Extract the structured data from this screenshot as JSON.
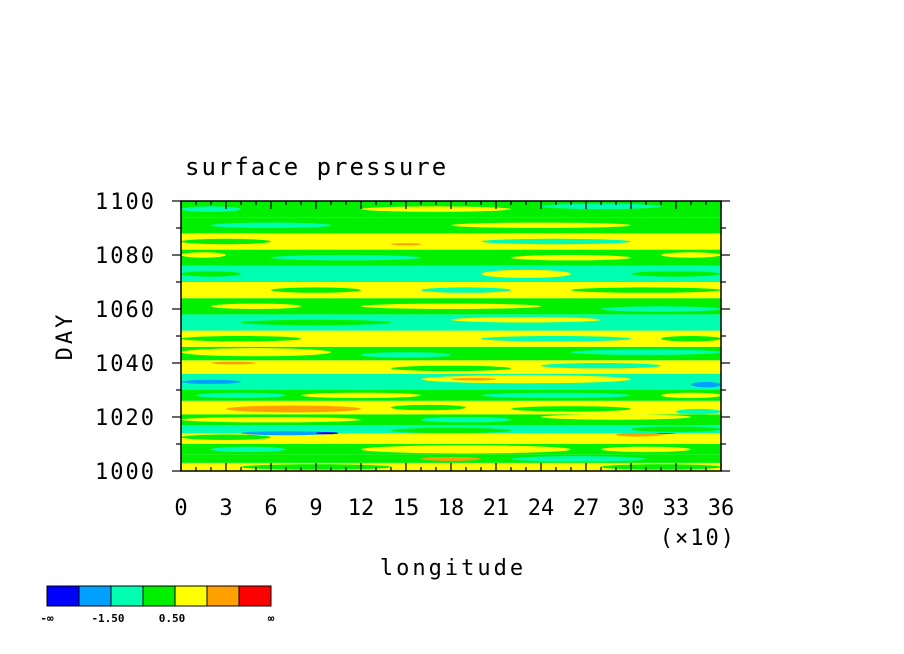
{
  "chart_data": {
    "type": "heatmap",
    "title": "surface pressure",
    "xlabel": "longitude",
    "ylabel": "DAY",
    "x_multiplier_label": "(×10)",
    "xlim": [
      0,
      36
    ],
    "ylim": [
      1000,
      1100
    ],
    "x_ticks": [
      0,
      3,
      6,
      9,
      12,
      15,
      18,
      21,
      24,
      27,
      30,
      33,
      36
    ],
    "y_ticks": [
      1000,
      1020,
      1040,
      1060,
      1080,
      1100
    ],
    "colorbar": {
      "colors": [
        "#0000ff",
        "#00a0ff",
        "#00ffb0",
        "#00f000",
        "#ffff00",
        "#ffa000",
        "#ff0000"
      ],
      "labels": [
        "-∞",
        "-1.50",
        "0.50",
        "∞"
      ]
    },
    "bands": [
      {
        "y0": 1000,
        "y1": 1003,
        "level": 4,
        "patches": [
          {
            "x": 4,
            "y": 1001.5,
            "w": 10,
            "h": 2,
            "level": 3
          },
          {
            "x": 28,
            "y": 1001.5,
            "w": 8,
            "h": 2,
            "level": 3
          }
        ]
      },
      {
        "y0": 1003,
        "y1": 1006,
        "level": 3,
        "patches": [
          {
            "x": 16,
            "y": 1004.5,
            "w": 4,
            "h": 1.5,
            "level": 5
          },
          {
            "x": 22,
            "y": 1004.5,
            "w": 9,
            "h": 2,
            "level": 2
          }
        ]
      },
      {
        "y0": 1006,
        "y1": 1010,
        "level": 3,
        "patches": [
          {
            "x": 2,
            "y": 1008,
            "w": 5,
            "h": 2,
            "level": 2
          },
          {
            "x": 12,
            "y": 1008,
            "w": 14,
            "h": 3,
            "level": 4
          },
          {
            "x": 28,
            "y": 1008,
            "w": 6,
            "h": 2,
            "level": 4
          }
        ]
      },
      {
        "y0": 1010,
        "y1": 1014,
        "level": 4,
        "patches": [
          {
            "x": 0,
            "y": 1012.5,
            "w": 6,
            "h": 2,
            "level": 3
          },
          {
            "x": 22,
            "y": 1012,
            "w": 8,
            "h": 2.5,
            "level": 4
          },
          {
            "x": 30,
            "y": 1014,
            "w": 3,
            "h": 0.8,
            "level": 6
          },
          {
            "x": 29,
            "y": 1013.5,
            "w": 3,
            "h": 1.5,
            "level": 5
          }
        ]
      },
      {
        "y0": 1014,
        "y1": 1017,
        "level": 2,
        "patches": [
          {
            "x": 4,
            "y": 1014,
            "w": 6,
            "h": 1.5,
            "level": 1
          },
          {
            "x": 9,
            "y": 1014,
            "w": 1.5,
            "h": 0.8,
            "level": 0
          },
          {
            "x": 14,
            "y": 1015,
            "w": 8,
            "h": 2,
            "level": 3
          },
          {
            "x": 30,
            "y": 1015.5,
            "w": 6,
            "h": 2,
            "level": 3
          }
        ]
      },
      {
        "y0": 1017,
        "y1": 1021,
        "level": 3,
        "patches": [
          {
            "x": 0,
            "y": 1019,
            "w": 12,
            "h": 2,
            "level": 4
          },
          {
            "x": 16,
            "y": 1019,
            "w": 6,
            "h": 2,
            "level": 2
          },
          {
            "x": 24,
            "y": 1020,
            "w": 10,
            "h": 2,
            "level": 4
          }
        ]
      },
      {
        "y0": 1021,
        "y1": 1026,
        "level": 4,
        "patches": [
          {
            "x": 3,
            "y": 1023,
            "w": 9,
            "h": 2.5,
            "level": 5
          },
          {
            "x": 14,
            "y": 1023.5,
            "w": 5,
            "h": 2,
            "level": 3
          },
          {
            "x": 22,
            "y": 1023,
            "w": 8,
            "h": 2,
            "level": 3
          },
          {
            "x": 33,
            "y": 1022,
            "w": 3,
            "h": 2,
            "level": 2
          }
        ]
      },
      {
        "y0": 1026,
        "y1": 1030,
        "level": 3,
        "patches": [
          {
            "x": 1,
            "y": 1028,
            "w": 6,
            "h": 2,
            "level": 2
          },
          {
            "x": 8,
            "y": 1028,
            "w": 8,
            "h": 2,
            "level": 4
          },
          {
            "x": 20,
            "y": 1028,
            "w": 10,
            "h": 2,
            "level": 2
          },
          {
            "x": 32,
            "y": 1028,
            "w": 4,
            "h": 2,
            "level": 4
          }
        ]
      },
      {
        "y0": 1030,
        "y1": 1036,
        "level": 2,
        "patches": [
          {
            "x": 0,
            "y": 1033,
            "w": 4,
            "h": 1.5,
            "level": 1
          },
          {
            "x": 16,
            "y": 1034,
            "w": 14,
            "h": 3,
            "level": 4
          },
          {
            "x": 18,
            "y": 1034,
            "w": 3,
            "h": 1,
            "level": 5
          },
          {
            "x": 34,
            "y": 1032,
            "w": 2,
            "h": 2,
            "level": 1
          }
        ]
      },
      {
        "y0": 1036,
        "y1": 1041,
        "level": 4,
        "patches": [
          {
            "x": 2,
            "y": 1040,
            "w": 3,
            "h": 1,
            "level": 5
          },
          {
            "x": 14,
            "y": 1038,
            "w": 8,
            "h": 2,
            "level": 3
          },
          {
            "x": 24,
            "y": 1039,
            "w": 8,
            "h": 2,
            "level": 2
          }
        ]
      },
      {
        "y0": 1041,
        "y1": 1046,
        "level": 3,
        "patches": [
          {
            "x": 0,
            "y": 1044,
            "w": 10,
            "h": 3,
            "level": 4
          },
          {
            "x": 12,
            "y": 1043,
            "w": 6,
            "h": 2,
            "level": 2
          },
          {
            "x": 26,
            "y": 1044,
            "w": 10,
            "h": 2,
            "level": 2
          }
        ]
      },
      {
        "y0": 1046,
        "y1": 1052,
        "level": 4,
        "patches": [
          {
            "x": 0,
            "y": 1049,
            "w": 8,
            "h": 2,
            "level": 3
          },
          {
            "x": 20,
            "y": 1049,
            "w": 10,
            "h": 2,
            "level": 2
          },
          {
            "x": 32,
            "y": 1049,
            "w": 4,
            "h": 2,
            "level": 3
          }
        ]
      },
      {
        "y0": 1052,
        "y1": 1058,
        "level": 2,
        "patches": [
          {
            "x": 4,
            "y": 1055,
            "w": 10,
            "h": 2,
            "level": 3
          },
          {
            "x": 18,
            "y": 1056,
            "w": 10,
            "h": 2,
            "level": 4
          }
        ]
      },
      {
        "y0": 1058,
        "y1": 1064,
        "level": 3,
        "patches": [
          {
            "x": 2,
            "y": 1061,
            "w": 6,
            "h": 2,
            "level": 4
          },
          {
            "x": 12,
            "y": 1061,
            "w": 12,
            "h": 2,
            "level": 4
          },
          {
            "x": 28,
            "y": 1060,
            "w": 8,
            "h": 2,
            "level": 2
          }
        ]
      },
      {
        "y0": 1064,
        "y1": 1070,
        "level": 4,
        "patches": [
          {
            "x": 6,
            "y": 1067,
            "w": 6,
            "h": 2,
            "level": 3
          },
          {
            "x": 16,
            "y": 1067,
            "w": 6,
            "h": 2,
            "level": 2
          },
          {
            "x": 26,
            "y": 1067,
            "w": 10,
            "h": 2,
            "level": 3
          }
        ]
      },
      {
        "y0": 1070,
        "y1": 1076,
        "level": 2,
        "patches": [
          {
            "x": 0,
            "y": 1073,
            "w": 4,
            "h": 2,
            "level": 3
          },
          {
            "x": 20,
            "y": 1073,
            "w": 6,
            "h": 3,
            "level": 4
          },
          {
            "x": 30,
            "y": 1073,
            "w": 6,
            "h": 2,
            "level": 3
          }
        ]
      },
      {
        "y0": 1076,
        "y1": 1082,
        "level": 3,
        "patches": [
          {
            "x": 0,
            "y": 1080,
            "w": 3,
            "h": 2,
            "level": 4
          },
          {
            "x": 6,
            "y": 1079,
            "w": 10,
            "h": 2,
            "level": 2
          },
          {
            "x": 22,
            "y": 1079,
            "w": 8,
            "h": 2,
            "level": 4
          },
          {
            "x": 32,
            "y": 1080,
            "w": 4,
            "h": 2,
            "level": 4
          }
        ]
      },
      {
        "y0": 1082,
        "y1": 1088,
        "level": 4,
        "patches": [
          {
            "x": 0,
            "y": 1085,
            "w": 6,
            "h": 2,
            "level": 3
          },
          {
            "x": 14,
            "y": 1084,
            "w": 2,
            "h": 0.8,
            "level": 5
          },
          {
            "x": 20,
            "y": 1085,
            "w": 10,
            "h": 2,
            "level": 2
          }
        ]
      },
      {
        "y0": 1088,
        "y1": 1094,
        "level": 3,
        "patches": [
          {
            "x": 2,
            "y": 1091,
            "w": 8,
            "h": 2,
            "level": 2
          },
          {
            "x": 18,
            "y": 1091,
            "w": 12,
            "h": 2,
            "level": 4
          }
        ]
      },
      {
        "y0": 1094,
        "y1": 1100,
        "level": 3,
        "patches": [
          {
            "x": 0,
            "y": 1097,
            "w": 4,
            "h": 2,
            "level": 2
          },
          {
            "x": 12,
            "y": 1097,
            "w": 10,
            "h": 2,
            "level": 4
          },
          {
            "x": 24,
            "y": 1098,
            "w": 8,
            "h": 2,
            "level": 2
          }
        ]
      }
    ]
  }
}
